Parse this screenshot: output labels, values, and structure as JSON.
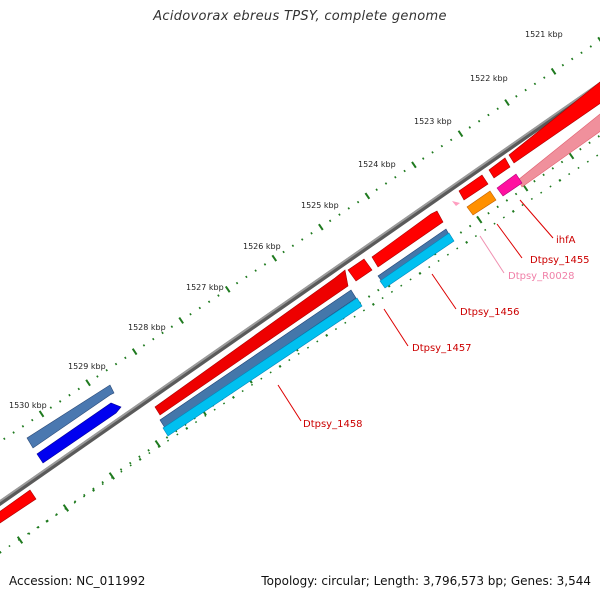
{
  "title": "Acidovorax ebreus TPSY, complete genome",
  "footer": {
    "accession": "Accession: NC_011992",
    "summary": "Topology: circular; Length: 3,796,573 bp; Genes: 3,544"
  },
  "tick_labels": [
    "1521 kbp",
    "1522 kbp",
    "1523 kbp",
    "1524 kbp",
    "1525 kbp",
    "1526 kbp",
    "1527 kbp",
    "1528 kbp",
    "1529 kbp",
    "1530 kbp"
  ],
  "gene_labels": [
    {
      "id": "ihfA",
      "text": "ihfA"
    },
    {
      "id": "dtpsy-1455",
      "text": "Dtpsy_1455"
    },
    {
      "id": "dtpsy-r0028",
      "text": "Dtpsy_R0028"
    },
    {
      "id": "dtpsy-1456",
      "text": "Dtpsy_1456"
    },
    {
      "id": "dtpsy-1457",
      "text": "Dtpsy_1457"
    },
    {
      "id": "dtpsy-1458",
      "text": "Dtpsy_1458"
    }
  ],
  "colors": {
    "backbone": "#7a7a7a",
    "tick_marks": "#1f7a1f",
    "gene_forward": "#ff0000",
    "gene_reverse_cds": "#1e88e5",
    "gene_blue": "#0000ee",
    "gene_steelblue": "#3b6ea5",
    "gene_cyan": "#00b4ee",
    "gene_orange": "#ff8c00",
    "gene_magenta": "#ff00aa",
    "gene_pink_faded": "#f07a90",
    "label_red": "#cc0000",
    "label_pink": "#f080a8"
  }
}
